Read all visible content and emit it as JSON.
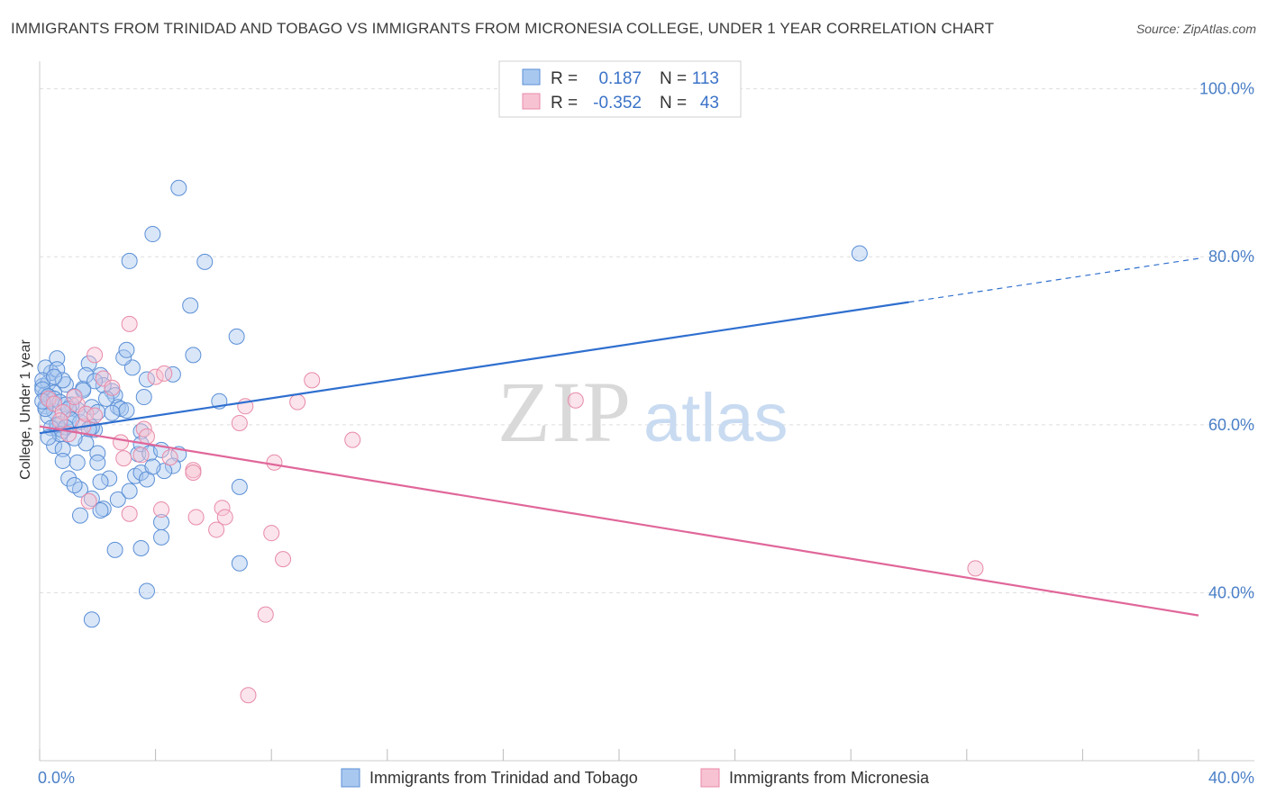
{
  "title": "IMMIGRANTS FROM TRINIDAD AND TOBAGO VS IMMIGRANTS FROM MICRONESIA COLLEGE, UNDER 1 YEAR CORRELATION CHART",
  "source": "Source: ZipAtlas.com",
  "watermark": {
    "zip": "ZIP",
    "atlas": "atlas"
  },
  "colors": {
    "blue_fill": "#a9c8f0",
    "blue_stroke": "#5b8fd6",
    "blue_line": "#2f6fcf",
    "pink_fill": "#f7c3d3",
    "pink_stroke": "#e88aa8",
    "pink_line": "#e0679a",
    "tick_text": "#4a7fc7",
    "grid": "#dddddd"
  },
  "legend": {
    "rows": [
      {
        "r_label": "R =",
        "r_value": "0.187",
        "n_label": "N =",
        "n_value": "113"
      },
      {
        "r_label": "R =",
        "r_value": "-0.352",
        "n_label": "N =",
        "n_value": "43"
      }
    ]
  },
  "chart_data": {
    "type": "scatter",
    "title": "IMMIGRANTS FROM TRINIDAD AND TOBAGO VS IMMIGRANTS FROM MICRONESIA COLLEGE, UNDER 1 YEAR CORRELATION CHART",
    "xlabel": "",
    "ylabel": "College, Under 1 year",
    "xlim": [
      0,
      40
    ],
    "ylim": [
      20,
      102
    ],
    "x_tick_labels": [
      {
        "value": 0,
        "label": "0.0%"
      },
      {
        "value": 40,
        "label": "40.0%"
      }
    ],
    "y_tick_labels": [
      {
        "value": 100,
        "label": "100.0%"
      },
      {
        "value": 80,
        "label": "80.0%"
      },
      {
        "value": 60,
        "label": "60.0%"
      },
      {
        "value": 40,
        "label": "40.0%"
      }
    ],
    "y_gridlines": [
      100,
      80,
      60,
      40
    ],
    "grid": true,
    "series": [
      {
        "name": "Immigrants from Trinidad and Tobago",
        "color": "#5b8fd6",
        "R": 0.187,
        "N": 113,
        "trendline": {
          "x_start": 0,
          "y_start": 59.0,
          "x_solid_end": 30.0,
          "y_solid_end": 74.6,
          "x_end": 40,
          "y_end": 79.8
        },
        "points": [
          [
            0.1,
            64.6
          ],
          [
            0.2,
            63.6
          ],
          [
            0.3,
            65.0
          ],
          [
            0.3,
            63.0
          ],
          [
            0.4,
            66.2
          ],
          [
            0.2,
            62.2
          ],
          [
            0.5,
            61.6
          ],
          [
            0.3,
            61.0
          ],
          [
            0.6,
            59.5
          ],
          [
            0.7,
            60.1
          ],
          [
            0.8,
            59.3
          ],
          [
            0.9,
            64.8
          ],
          [
            0.6,
            67.9
          ],
          [
            1.0,
            60.9
          ],
          [
            1.2,
            63.4
          ],
          [
            1.3,
            61.8
          ],
          [
            0.4,
            62.9
          ],
          [
            0.5,
            63.8
          ],
          [
            1.1,
            62.4
          ],
          [
            1.4,
            60.3
          ],
          [
            1.5,
            64.3
          ],
          [
            1.6,
            61.3
          ],
          [
            1.8,
            62.1
          ],
          [
            2.0,
            61.5
          ],
          [
            1.7,
            67.3
          ],
          [
            1.6,
            65.9
          ],
          [
            2.1,
            65.9
          ],
          [
            2.5,
            64.0
          ],
          [
            2.6,
            63.5
          ],
          [
            2.7,
            62.1
          ],
          [
            2.8,
            61.9
          ],
          [
            3.0,
            61.7
          ],
          [
            1.9,
            59.4
          ],
          [
            2.5,
            61.4
          ],
          [
            3.2,
            66.8
          ],
          [
            3.6,
            63.3
          ],
          [
            2.9,
            68.0
          ],
          [
            3.0,
            68.9
          ],
          [
            3.7,
            65.4
          ],
          [
            4.6,
            66.0
          ],
          [
            3.5,
            59.2
          ],
          [
            3.4,
            56.5
          ],
          [
            3.5,
            57.7
          ],
          [
            3.8,
            56.6
          ],
          [
            4.2,
            57.0
          ],
          [
            4.8,
            56.5
          ],
          [
            4.6,
            55.1
          ],
          [
            4.3,
            54.5
          ],
          [
            0.5,
            57.5
          ],
          [
            0.8,
            57.1
          ],
          [
            0.8,
            55.7
          ],
          [
            1.0,
            53.6
          ],
          [
            1.3,
            55.5
          ],
          [
            1.4,
            52.3
          ],
          [
            2.0,
            56.6
          ],
          [
            2.0,
            55.5
          ],
          [
            2.4,
            53.6
          ],
          [
            2.1,
            53.2
          ],
          [
            1.2,
            52.8
          ],
          [
            1.8,
            51.2
          ],
          [
            2.2,
            50.0
          ],
          [
            1.4,
            49.2
          ],
          [
            2.1,
            49.8
          ],
          [
            2.7,
            51.1
          ],
          [
            3.1,
            52.1
          ],
          [
            3.3,
            53.9
          ],
          [
            3.5,
            54.3
          ],
          [
            3.7,
            53.5
          ],
          [
            3.9,
            55.0
          ],
          [
            1.6,
            57.8
          ],
          [
            1.2,
            58.4
          ],
          [
            1.8,
            59.7
          ],
          [
            2.6,
            45.1
          ],
          [
            3.5,
            45.3
          ],
          [
            3.7,
            40.2
          ],
          [
            1.8,
            36.8
          ],
          [
            4.2,
            48.4
          ],
          [
            4.2,
            46.6
          ],
          [
            6.9,
            43.5
          ],
          [
            6.9,
            52.6
          ],
          [
            4.8,
            88.2
          ],
          [
            3.9,
            82.7
          ],
          [
            3.1,
            79.5
          ],
          [
            5.7,
            79.4
          ],
          [
            5.2,
            74.2
          ],
          [
            6.8,
            70.5
          ],
          [
            5.3,
            68.3
          ],
          [
            6.2,
            62.8
          ],
          [
            0.2,
            66.8
          ],
          [
            0.1,
            65.3
          ],
          [
            0.1,
            64.2
          ],
          [
            0.3,
            63.4
          ],
          [
            0.5,
            63.1
          ],
          [
            0.7,
            62.7
          ],
          [
            0.9,
            62.4
          ],
          [
            1.0,
            61.9
          ],
          [
            1.1,
            60.6
          ],
          [
            0.6,
            60.0
          ],
          [
            0.9,
            59.7
          ],
          [
            0.4,
            59.6
          ],
          [
            0.7,
            58.9
          ],
          [
            0.3,
            58.5
          ],
          [
            0.2,
            61.9
          ],
          [
            0.1,
            62.8
          ],
          [
            0.6,
            66.6
          ],
          [
            1.5,
            64.1
          ],
          [
            2.2,
            64.7
          ],
          [
            2.3,
            63.1
          ],
          [
            1.9,
            65.2
          ],
          [
            0.8,
            65.3
          ],
          [
            28.3,
            80.4
          ],
          [
            0.5,
            65.7
          ],
          [
            1.7,
            59.5
          ]
        ]
      },
      {
        "name": "Immigrants from Micronesia",
        "color": "#e88aa8",
        "R": -0.352,
        "N": 43,
        "trendline": {
          "x_start": 0,
          "y_start": 59.8,
          "x_end": 40,
          "y_end": 37.3
        },
        "points": [
          [
            0.3,
            63.1
          ],
          [
            0.5,
            62.5
          ],
          [
            0.8,
            61.5
          ],
          [
            1.3,
            62.4
          ],
          [
            1.5,
            59.8
          ],
          [
            1.0,
            58.9
          ],
          [
            0.7,
            60.5
          ],
          [
            1.2,
            63.3
          ],
          [
            1.6,
            61.3
          ],
          [
            1.9,
            61.1
          ],
          [
            2.2,
            65.5
          ],
          [
            2.5,
            64.4
          ],
          [
            1.9,
            68.3
          ],
          [
            3.1,
            72.0
          ],
          [
            4.0,
            65.7
          ],
          [
            4.3,
            66.1
          ],
          [
            3.6,
            59.5
          ],
          [
            3.7,
            58.6
          ],
          [
            2.8,
            57.9
          ],
          [
            2.9,
            56.0
          ],
          [
            3.5,
            56.4
          ],
          [
            4.5,
            56.1
          ],
          [
            5.3,
            54.6
          ],
          [
            5.3,
            54.3
          ],
          [
            7.1,
            62.2
          ],
          [
            6.9,
            60.2
          ],
          [
            8.9,
            62.7
          ],
          [
            9.4,
            65.3
          ],
          [
            10.8,
            58.2
          ],
          [
            8.1,
            55.5
          ],
          [
            6.3,
            50.1
          ],
          [
            6.4,
            49.0
          ],
          [
            5.4,
            49.0
          ],
          [
            4.2,
            49.9
          ],
          [
            3.1,
            49.4
          ],
          [
            6.1,
            47.5
          ],
          [
            8.0,
            47.1
          ],
          [
            8.4,
            44.0
          ],
          [
            7.8,
            37.4
          ],
          [
            7.2,
            27.8
          ],
          [
            18.5,
            62.9
          ],
          [
            32.3,
            42.9
          ],
          [
            1.7,
            50.9
          ]
        ]
      }
    ]
  },
  "bottom_legend": [
    {
      "label": "Immigrants from Trinidad and Tobago"
    },
    {
      "label": "Immigrants from Micronesia"
    }
  ]
}
